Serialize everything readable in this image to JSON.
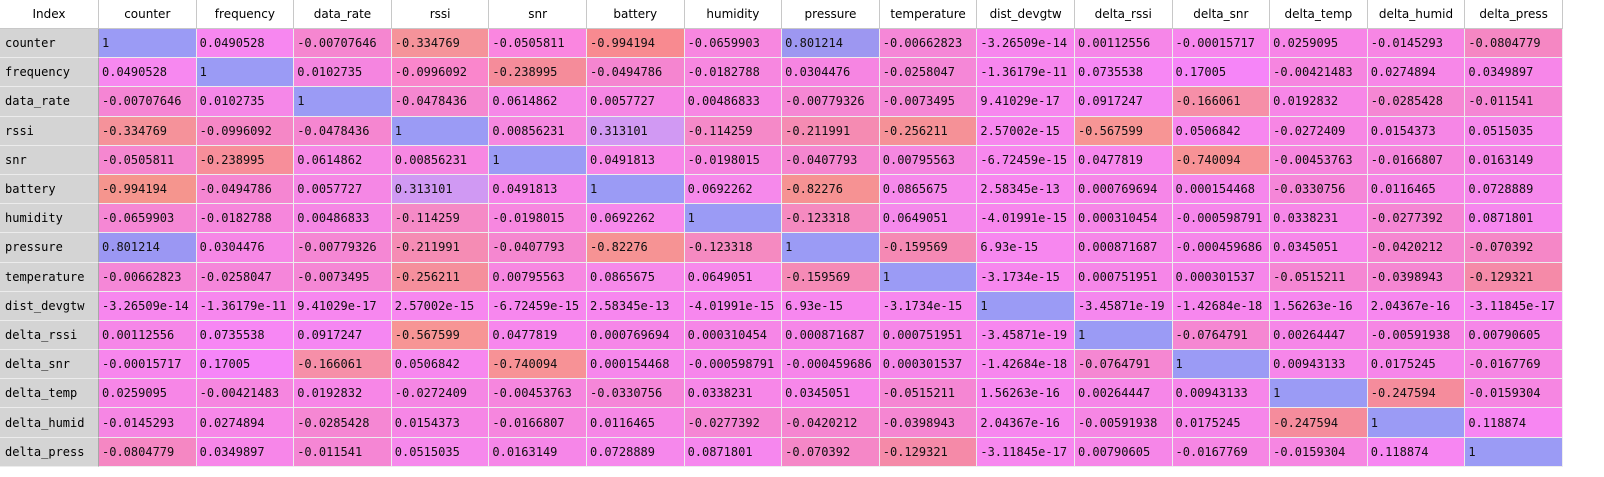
{
  "table": {
    "index_header": "Index",
    "columns": [
      "counter",
      "frequency",
      "data_rate",
      "rssi",
      "snr",
      "battery",
      "humidity",
      "pressure",
      "temperature",
      "dist_devgtw",
      "delta_rssi",
      "delta_snr",
      "delta_temp",
      "delta_humid",
      "delta_press"
    ],
    "rows": [
      {
        "label": "counter",
        "cells": [
          "1",
          "0.0490528",
          "-0.00707646",
          "-0.334769",
          "-0.0505811",
          "-0.994194",
          "-0.0659903",
          "0.801214",
          "-0.00662823",
          "-3.26509e-14",
          "0.00112556",
          "-0.00015717",
          "0.0259095",
          "-0.0145293",
          "-0.0804779"
        ],
        "colors": [
          "#9b9bf5",
          "#f787f0",
          "#f586d0",
          "#f5939a",
          "#fa86e0",
          "#f88a90",
          "#f787e0",
          "#9d97f1",
          "#f587d7",
          "#f786ee",
          "#f686e8",
          "#f786ed",
          "#f785e7",
          "#f786e4",
          "#f587c3"
        ]
      },
      {
        "label": "frequency",
        "cells": [
          "0.0490528",
          "1",
          "0.0102735",
          "-0.0996092",
          "-0.238995",
          "-0.0494786",
          "-0.0182788",
          "0.0304476",
          "-0.0258047",
          "-1.36179e-11",
          "0.0735538",
          "0.17005",
          "-0.00421483",
          "0.0274894",
          "0.0349897"
        ],
        "colors": [
          "#f788f0",
          "#9b9bf5",
          "#f585e0",
          "#fa86cc",
          "#f58c9a",
          "#f585d0",
          "#f787e0",
          "#f685e2",
          "#f587d7",
          "#f786ee",
          "#f787f4",
          "#f685f8",
          "#f685e0",
          "#f787e8",
          "#f786e9"
        ]
      },
      {
        "label": "data_rate",
        "cells": [
          "-0.00707646",
          "0.0102735",
          "1",
          "-0.0478436",
          "0.0614862",
          "0.0057727",
          "0.00486833",
          "-0.00779326",
          "-0.0073495",
          "9.41029e-17",
          "0.0917247",
          "-0.166061",
          "0.0192832",
          "-0.0285428",
          "-0.011541"
        ],
        "colors": [
          "#f585d4",
          "#f587e8",
          "#9b9bf5",
          "#f587d0",
          "#f688e8",
          "#f686e4",
          "#f787e4",
          "#f587d4",
          "#f587d6",
          "#f787ef",
          "#f587f2",
          "#f68fa8",
          "#f786e7",
          "#f587d3",
          "#f586d4"
        ]
      },
      {
        "label": "rssi",
        "cells": [
          "-0.334769",
          "-0.0996092",
          "-0.0478436",
          "1",
          "0.00856231",
          "0.313101",
          "-0.114259",
          "-0.211991",
          "-0.256211",
          "2.57002e-15",
          "-0.567599",
          "0.0506842",
          "-0.0272409",
          "0.0154373",
          "0.0515035"
        ],
        "colors": [
          "#f5929a",
          "#f587c6",
          "#f586d0",
          "#9b9bf5",
          "#f688e0",
          "#d199f3",
          "#f589c8",
          "#f58bb2",
          "#f59197",
          "#f787ee",
          "#f79595",
          "#f787ef",
          "#f786e4",
          "#f686e6",
          "#f688ec"
        ]
      },
      {
        "label": "snr",
        "cells": [
          "-0.0505811",
          "-0.238995",
          "0.0614862",
          "0.00856231",
          "1",
          "0.0491813",
          "-0.0198015",
          "-0.0407793",
          "0.00795563",
          "-6.72459e-15",
          "0.0477819",
          "-0.740094",
          "-0.00453763",
          "-0.0166807",
          "0.0163149"
        ],
        "colors": [
          "#f587d0",
          "#f78e9a",
          "#f688e6",
          "#f787e2",
          "#9b9bf5",
          "#f787e8",
          "#f686e0",
          "#f586d0",
          "#f587e0",
          "#f787ee",
          "#f787ed",
          "#f79296",
          "#f686de",
          "#f686de",
          "#f686e8"
        ]
      },
      {
        "label": "battery",
        "cells": [
          "-0.994194",
          "-0.0494786",
          "0.0057727",
          "0.313101",
          "0.0491813",
          "1",
          "0.0692262",
          "-0.82276",
          "0.0865675",
          "2.58345e-13",
          "0.000769694",
          "0.000154468",
          "-0.0330756",
          "0.0116465",
          "0.0728889"
        ],
        "colors": [
          "#f5958e",
          "#f586d2",
          "#f587e5",
          "#d099f3",
          "#f686e9",
          "#9b9bf5",
          "#f689eb",
          "#f69293",
          "#f689eb",
          "#f787ef",
          "#f686e8",
          "#f687ec",
          "#f586d8",
          "#f687e6",
          "#f688ec"
        ]
      },
      {
        "label": "humidity",
        "cells": [
          "-0.0659903",
          "-0.0182788",
          "0.00486833",
          "-0.114259",
          "-0.0198015",
          "0.0692262",
          "1",
          "-0.123318",
          "0.0649051",
          "-4.01991e-15",
          "0.000310454",
          "-0.000598791",
          "0.0338231",
          "-0.0277392",
          "0.0871801"
        ],
        "colors": [
          "#f587d4",
          "#f686dc",
          "#f587e5",
          "#f58ac6",
          "#f787e0",
          "#f789ec",
          "#9b9bf5",
          "#f58ac0",
          "#f589eb",
          "#f786ed",
          "#f686e7",
          "#f686eb",
          "#f787e8",
          "#f586d4",
          "#f687ee"
        ]
      },
      {
        "label": "pressure",
        "cells": [
          "0.801214",
          "0.0304476",
          "-0.00779326",
          "-0.211991",
          "-0.0407793",
          "-0.82276",
          "-0.123318",
          "1",
          "-0.159569",
          "6.93e-15",
          "0.000871687",
          "-0.000459686",
          "0.0345051",
          "-0.0420212",
          "-0.070392"
        ],
        "colors": [
          "#9b97f3",
          "#f687e6",
          "#f587d4",
          "#f58cb4",
          "#f587d0",
          "#f69394",
          "#f58ac1",
          "#9b9bf5",
          "#f589b4",
          "#f787ef",
          "#f686e8",
          "#f686ea",
          "#f787ea",
          "#f586d1",
          "#f587c7"
        ]
      },
      {
        "label": "temperature",
        "cells": [
          "-0.00662823",
          "-0.0258047",
          "-0.0073495",
          "-0.256211",
          "0.00795563",
          "0.0865675",
          "0.0649051",
          "-0.159569",
          "1",
          "-3.1734e-15",
          "0.000751951",
          "0.000301537",
          "-0.0515211",
          "-0.0398943",
          "-0.129321"
        ],
        "colors": [
          "#f587d7",
          "#f586da",
          "#f587d5",
          "#f58f9c",
          "#f787e1",
          "#f689ea",
          "#f789eb",
          "#f58ab6",
          "#9b9bf5",
          "#f787ee",
          "#f686e8",
          "#f686ea",
          "#f586d3",
          "#f586d2",
          "#f58aa8"
        ]
      },
      {
        "label": "dist_devgtw",
        "cells": [
          "-3.26509e-14",
          "-1.36179e-11",
          "9.41029e-17",
          "2.57002e-15",
          "-6.72459e-15",
          "2.58345e-13",
          "-4.01991e-15",
          "6.93e-15",
          "-3.1734e-15",
          "1",
          "-3.45871e-19",
          "-1.42684e-18",
          "1.56263e-16",
          "2.04367e-16",
          "-3.11845e-17"
        ],
        "colors": [
          "#f787ee",
          "#f787ee",
          "#f787ef",
          "#f787ef",
          "#f787ee",
          "#f787ef",
          "#f787ee",
          "#f787ef",
          "#f787ee",
          "#9b9bf5",
          "#f587ee",
          "#f787ee",
          "#f787ef",
          "#f787ef",
          "#f787ef"
        ]
      },
      {
        "label": "delta_rssi",
        "cells": [
          "0.00112556",
          "0.0735538",
          "0.0917247",
          "-0.567599",
          "0.0477819",
          "0.000769694",
          "0.000310454",
          "0.000871687",
          "0.000751951",
          "-3.45871e-19",
          "1",
          "-0.0764791",
          "0.00264447",
          "-0.00591938",
          "0.00790605"
        ],
        "colors": [
          "#f686e8",
          "#f787f4",
          "#f587f2",
          "#f79595",
          "#f787ed",
          "#f686e8",
          "#f686e7",
          "#f686e8",
          "#f686e8",
          "#f787ef",
          "#9b9bf5",
          "#f587d2",
          "#f686e8",
          "#f686e4",
          "#f686e8"
        ]
      },
      {
        "label": "delta_snr",
        "cells": [
          "-0.00015717",
          "0.17005",
          "-0.166061",
          "0.0506842",
          "-0.740094",
          "0.000154468",
          "-0.000598791",
          "-0.000459686",
          "0.000301537",
          "-1.42684e-18",
          "-0.0764791",
          "1",
          "0.00943133",
          "0.0175245",
          "-0.0167769"
        ],
        "colors": [
          "#f786ed",
          "#f685f8",
          "#f68fa8",
          "#f787ef",
          "#f79296",
          "#f687ec",
          "#f686eb",
          "#f686ea",
          "#f686ea",
          "#f787ee",
          "#f587d2",
          "#9b9bf5",
          "#f686ea",
          "#f686ea",
          "#f686e4"
        ]
      },
      {
        "label": "delta_temp",
        "cells": [
          "0.0259095",
          "-0.00421483",
          "0.0192832",
          "-0.0272409",
          "-0.00453763",
          "-0.0330756",
          "0.0338231",
          "0.0345051",
          "-0.0515211",
          "1.56263e-16",
          "0.00264447",
          "0.00943133",
          "1",
          "-0.247594",
          "-0.0159304"
        ],
        "colors": [
          "#f786e7",
          "#f686e0",
          "#f786e7",
          "#f586e4",
          "#f686de",
          "#f586d8",
          "#f787e8",
          "#f787ea",
          "#f586d3",
          "#f787ef",
          "#f686e8",
          "#f686ea",
          "#9b9bf5",
          "#f58c9c",
          "#f686e2"
        ]
      },
      {
        "label": "delta_humid",
        "cells": [
          "-0.0145293",
          "0.0274894",
          "-0.0285428",
          "0.0154373",
          "-0.0166807",
          "0.0116465",
          "-0.0277392",
          "-0.0420212",
          "-0.0398943",
          "2.04367e-16",
          "-0.00591938",
          "0.0175245",
          "-0.247594",
          "1",
          "0.118874"
        ],
        "colors": [
          "#f686e4",
          "#f787e8",
          "#f587d3",
          "#f686e6",
          "#f686de",
          "#f687e6",
          "#f586d4",
          "#f586d1",
          "#f586d2",
          "#f787ef",
          "#f686e4",
          "#f686ea",
          "#f58c9c",
          "#9b9bf5",
          "#f786f2"
        ]
      },
      {
        "label": "delta_press",
        "cells": [
          "-0.0804779",
          "0.0349897",
          "-0.011541",
          "0.0515035",
          "0.0163149",
          "0.0728889",
          "0.0871801",
          "-0.070392",
          "-0.129321",
          "-3.11845e-17",
          "0.00790605",
          "-0.0167769",
          "-0.0159304",
          "0.118874",
          "1"
        ],
        "colors": [
          "#f587c3",
          "#f786e9",
          "#f586d4",
          "#f688ec",
          "#f686e8",
          "#f688ec",
          "#f687ee",
          "#f587c7",
          "#f58aa8",
          "#f787ef",
          "#f686e8",
          "#f686e4",
          "#f686e2",
          "#f786f2",
          "#9b9bf5"
        ]
      }
    ]
  }
}
